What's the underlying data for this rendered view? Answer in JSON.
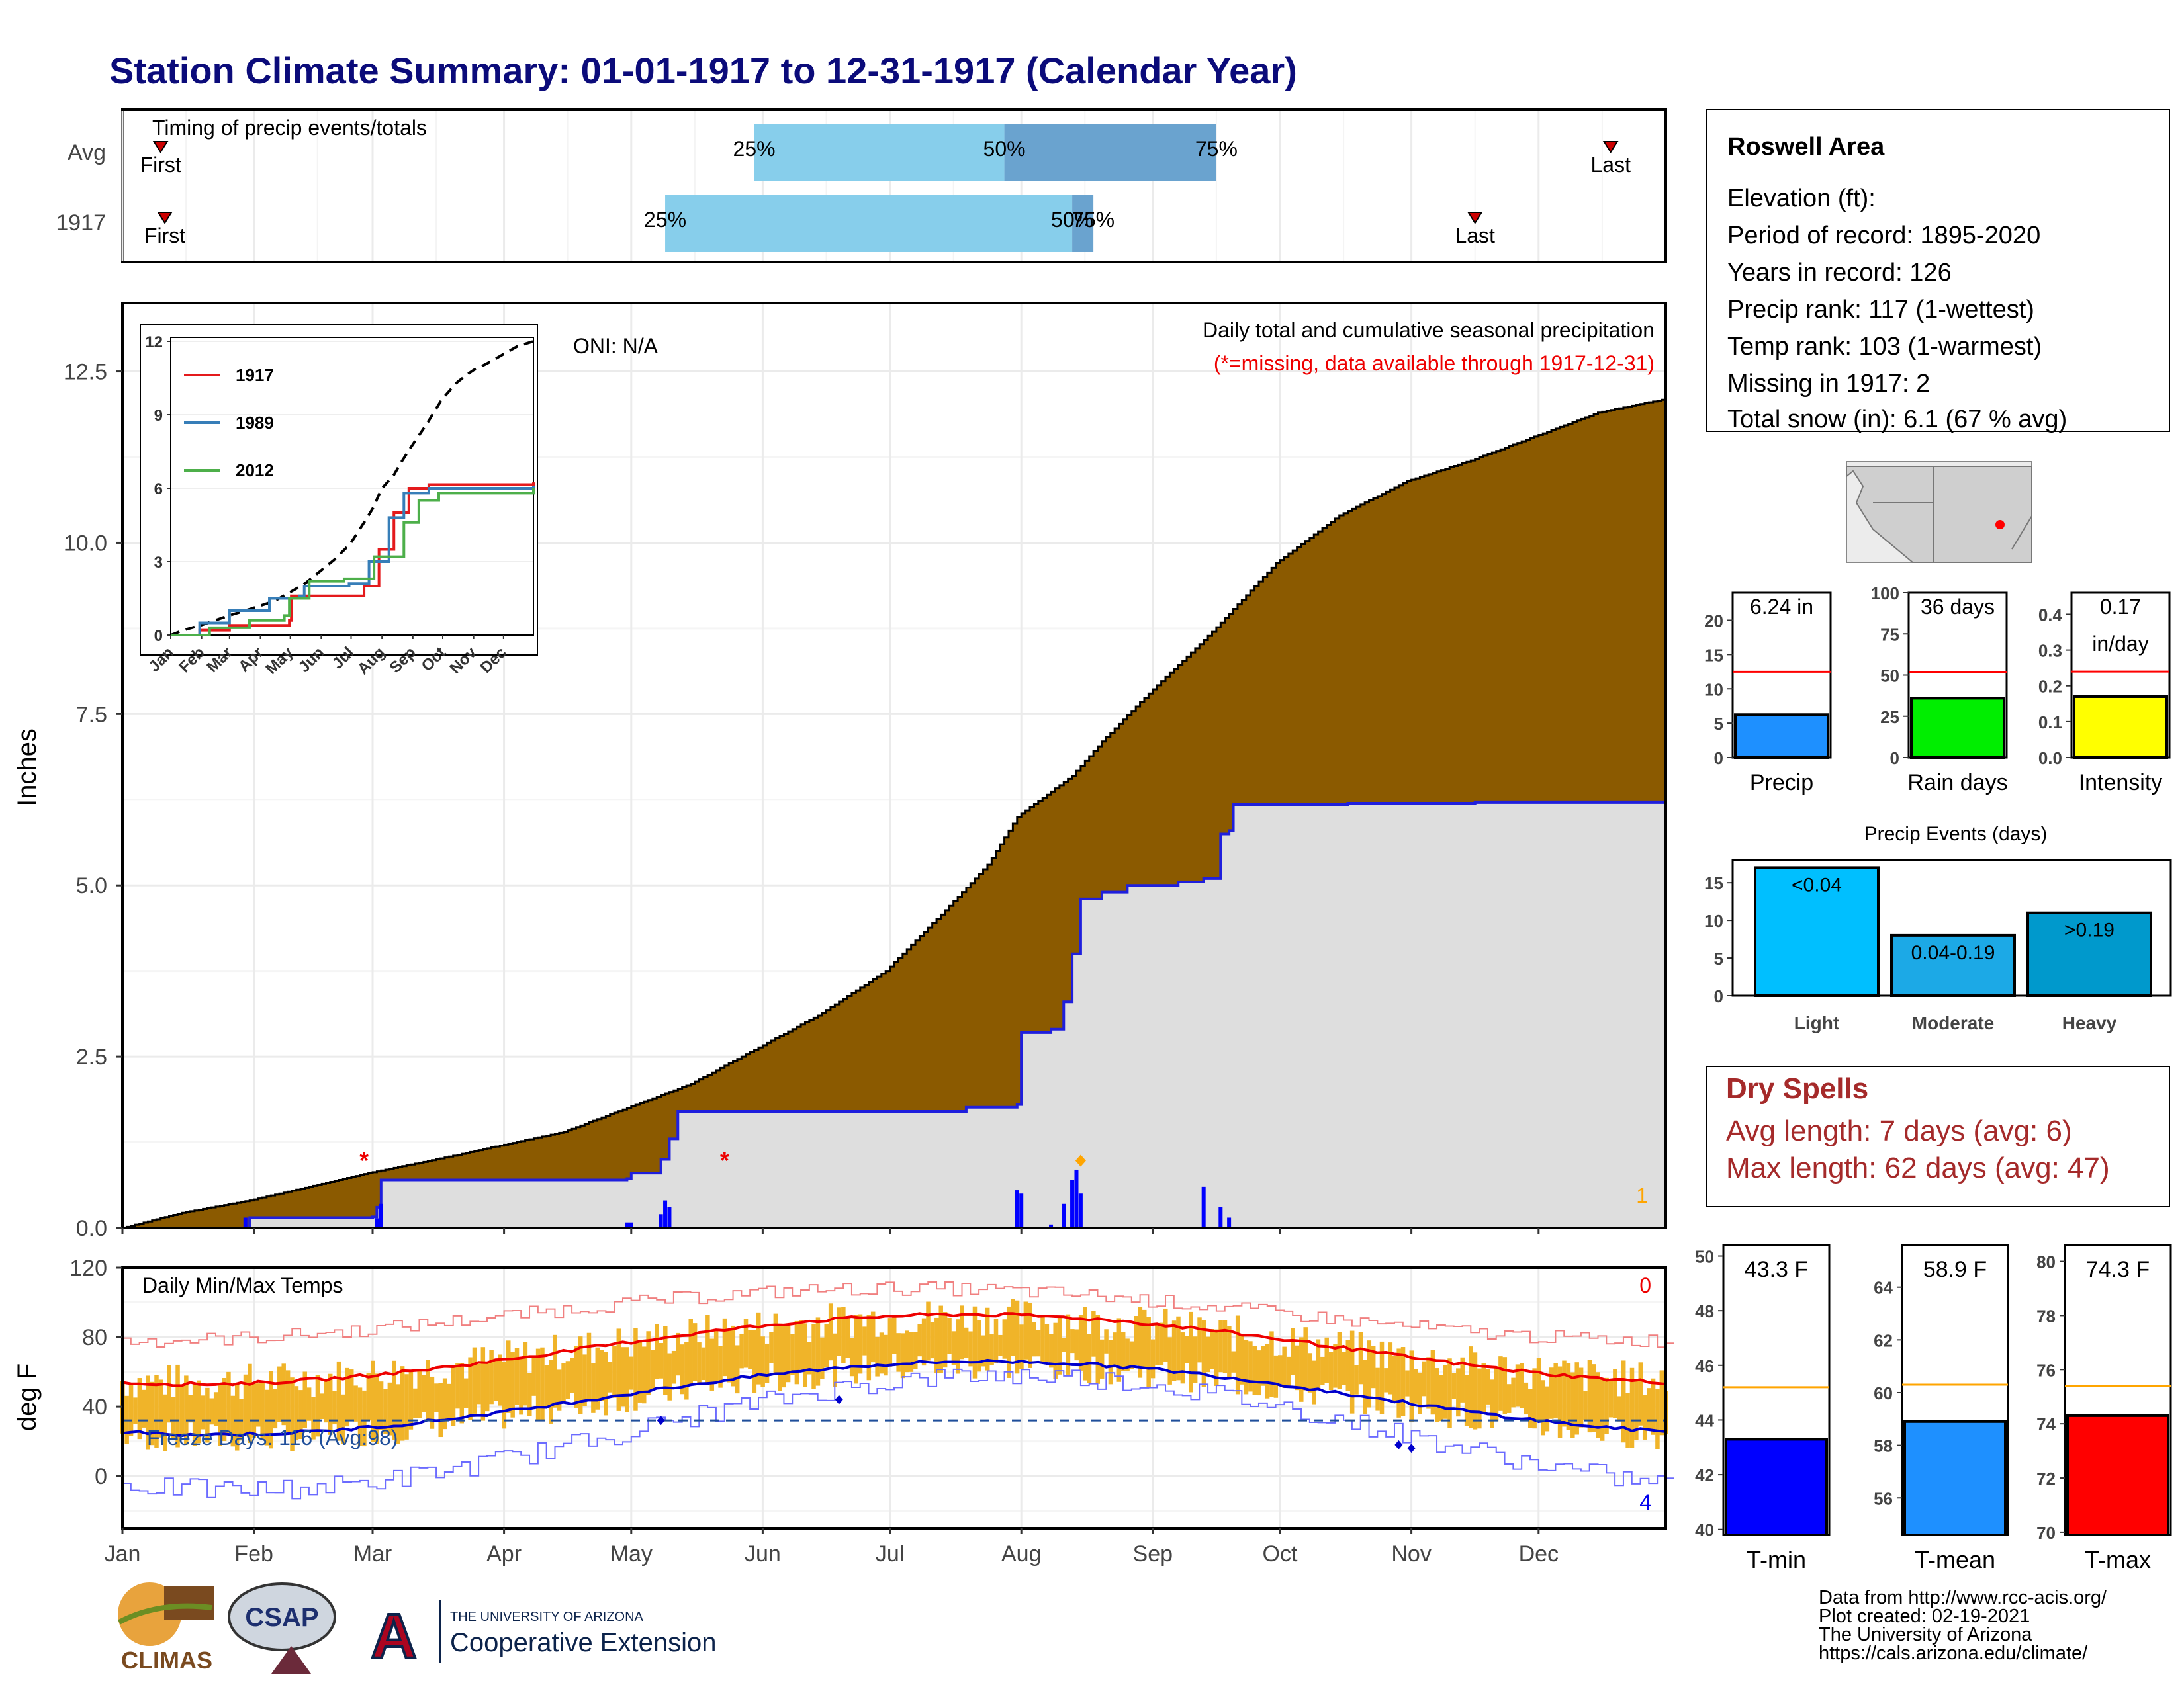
{
  "title": "Station Climate Summary: 01-01-1917 to 12-31-1917 (Calendar Year)",
  "timing": {
    "label": "Timing of precip events/totals",
    "rows": [
      {
        "name": "Avg",
        "first_doy": 10,
        "p25_doy": 150,
        "p50_doy": 209,
        "p75_doy": 259,
        "last_doy": 352
      },
      {
        "name": "1917",
        "first_doy": 11,
        "p25_doy": 129,
        "p50_doy": 225,
        "p75_doy": 230,
        "last_doy": 320
      }
    ],
    "labels": {
      "first": "First",
      "last": "Last",
      "p25": "25%",
      "p50": "50%",
      "p75": "75%"
    }
  },
  "chart_data": [
    {
      "type": "area",
      "name": "main-precip",
      "title": "Daily total and cumulative seasonal precipitation",
      "subtitle": "(*=missing, data available through 1917-12-31)",
      "oni": "ONI: N/A",
      "ylabel": "Inches",
      "ylim": [
        0,
        13.5
      ],
      "yticks": [
        "0.0",
        "2.5",
        "5.0",
        "7.5",
        "10.0",
        "12.5"
      ],
      "xticks": [
        "Jan",
        "Feb",
        "Mar",
        "Apr",
        "May",
        "Jun",
        "Jul",
        "Aug",
        "Sep",
        "Oct",
        "Nov",
        "Dec"
      ],
      "avg_cumulative": [
        [
          1,
          0
        ],
        [
          15,
          0.22
        ],
        [
          31,
          0.4
        ],
        [
          45,
          0.6
        ],
        [
          59,
          0.8
        ],
        [
          75,
          1.0
        ],
        [
          90,
          1.2
        ],
        [
          105,
          1.4
        ],
        [
          120,
          1.75
        ],
        [
          135,
          2.1
        ],
        [
          150,
          2.6
        ],
        [
          165,
          3.1
        ],
        [
          181,
          3.75
        ],
        [
          196,
          4.7
        ],
        [
          205,
          5.3
        ],
        [
          212,
          6.0
        ],
        [
          225,
          6.6
        ],
        [
          232,
          7.1
        ],
        [
          243,
          7.8
        ],
        [
          258,
          8.7
        ],
        [
          273,
          9.7
        ],
        [
          288,
          10.4
        ],
        [
          304,
          10.9
        ],
        [
          319,
          11.2
        ],
        [
          334,
          11.55
        ],
        [
          349,
          11.9
        ],
        [
          365,
          12.1
        ]
      ],
      "cumulative_1917": [
        [
          1,
          0
        ],
        [
          30,
          0
        ],
        [
          31,
          0.15
        ],
        [
          60,
          0.16
        ],
        [
          61,
          0.3
        ],
        [
          62,
          0.7
        ],
        [
          120,
          0.72
        ],
        [
          121,
          0.8
        ],
        [
          128,
          1.0
        ],
        [
          130,
          1.3
        ],
        [
          132,
          1.7
        ],
        [
          200,
          1.76
        ],
        [
          212,
          1.8
        ],
        [
          213,
          2.85
        ],
        [
          220,
          2.9
        ],
        [
          223,
          3.3
        ],
        [
          225,
          4.0
        ],
        [
          227,
          4.8
        ],
        [
          232,
          4.9
        ],
        [
          238,
          5.0
        ],
        [
          250,
          5.05
        ],
        [
          256,
          5.1
        ],
        [
          260,
          5.75
        ],
        [
          262,
          5.8
        ],
        [
          263,
          6.18
        ],
        [
          290,
          6.19
        ],
        [
          320,
          6.21
        ],
        [
          365,
          6.24
        ]
      ],
      "daily_bars": [
        [
          30,
          0.15
        ],
        [
          61,
          0.14
        ],
        [
          62,
          0.35
        ],
        [
          120,
          0.08
        ],
        [
          121,
          0.08
        ],
        [
          128,
          0.2
        ],
        [
          129,
          0.4
        ],
        [
          130,
          0.3
        ],
        [
          212,
          0.55
        ],
        [
          213,
          0.5
        ],
        [
          220,
          0.05
        ],
        [
          223,
          0.35
        ],
        [
          225,
          0.7
        ],
        [
          226,
          0.85
        ],
        [
          227,
          0.5
        ],
        [
          256,
          0.6
        ],
        [
          260,
          0.3
        ],
        [
          262,
          0.15
        ]
      ],
      "missing_markers": [
        [
          58,
          1.0
        ],
        [
          143,
          1.0
        ]
      ],
      "snow_marker_day": 227,
      "corner_count": "1",
      "inset": {
        "yticks": [
          "0",
          "3",
          "6",
          "9",
          "12"
        ],
        "xticks": [
          "Jan",
          "Feb",
          "Mar",
          "Apr",
          "May",
          "Jun",
          "Jul",
          "Aug",
          "Sep",
          "Oct",
          "Nov",
          "Dec"
        ],
        "series": [
          {
            "name": "1917",
            "color": "#e41a1c"
          },
          {
            "name": "1989",
            "color": "#377eb8"
          },
          {
            "name": "2012",
            "color": "#4daf4a"
          }
        ]
      }
    },
    {
      "type": "line",
      "name": "temps",
      "title": "Daily Min/Max Temps",
      "ylabel": "deg F",
      "ylim": [
        -30,
        120
      ],
      "yticks": [
        "0",
        "40",
        "80",
        "120"
      ],
      "freeze_label": "Freeze Days: 116 (Avg:98)",
      "freeze_line": 32,
      "top_count": "0",
      "bottom_count": "4",
      "xticks": [
        "Jan",
        "Feb",
        "Mar",
        "Apr",
        "May",
        "Jun",
        "Jul",
        "Aug",
        "Sep",
        "Oct",
        "Nov",
        "Dec"
      ]
    }
  ],
  "info": {
    "station": "Roswell Area",
    "lines": [
      "Elevation (ft):",
      "Period of record: 1895-2020",
      "Years in record: 126",
      "Precip rank: 117 (1-wettest)",
      "Temp rank: 103 (1-warmest)",
      "Missing in 1917: 2",
      "Total snow (in): 6.1 (67 % avg)"
    ]
  },
  "mini_bars": {
    "precip": {
      "label": "Precip",
      "value_text": "6.24 in",
      "value": 6.24,
      "avg": 12.5,
      "ymax": 24,
      "yticks": [
        "0",
        "5",
        "10",
        "15",
        "20"
      ],
      "color": "#1e90ff"
    },
    "rain_days": {
      "label": "Rain days",
      "value_text": "36 days",
      "value": 36,
      "avg": 52,
      "ymax": 100,
      "yticks": [
        "0",
        "25",
        "50",
        "75",
        "100"
      ],
      "color": "#00ee00"
    },
    "intensity": {
      "label": "Intensity",
      "value_text1": "0.17",
      "value_text2": "in/day",
      "value": 0.17,
      "avg": 0.24,
      "ymax": 0.46,
      "yticks": [
        "0.0",
        "0.1",
        "0.2",
        "0.3",
        "0.4"
      ],
      "color": "#ffff00"
    }
  },
  "events": {
    "title": "Precip Events (days)",
    "yticks": [
      "0",
      "5",
      "10",
      "15"
    ],
    "bars": [
      {
        "name": "Light",
        "label": "<0.04",
        "value": 17,
        "color": "#00bfff"
      },
      {
        "name": "Moderate",
        "label": "0.04-0.19",
        "value": 8,
        "color": "#1ca9e6"
      },
      {
        "name": "Heavy",
        "label": ">0.19",
        "value": 11,
        "color": "#0099cc"
      }
    ]
  },
  "dry_spells": {
    "title": "Dry Spells",
    "avg_line": "Avg length: 7 days (avg: 6)",
    "max_line": "Max length: 62 days (avg: 47)"
  },
  "temp_bars": {
    "tmin": {
      "label": "T-min",
      "value_text": "43.3 F",
      "value": 43.3,
      "avg": 45.2,
      "ylim": [
        39.8,
        50.4
      ],
      "yticks": [
        "40",
        "42",
        "44",
        "46",
        "48",
        "50"
      ],
      "color": "#0000ff"
    },
    "tmean": {
      "label": "T-mean",
      "value_text": "58.9 F",
      "value": 58.9,
      "avg": 60.3,
      "ylim": [
        54.6,
        65.6
      ],
      "yticks": [
        "56",
        "58",
        "60",
        "62",
        "64"
      ],
      "color": "#1e90ff"
    },
    "tmax": {
      "label": "T-max",
      "value_text": "74.3 F",
      "value": 74.3,
      "avg": 75.4,
      "ylim": [
        69.9,
        80.6
      ],
      "yticks": [
        "70",
        "72",
        "74",
        "76",
        "78",
        "80"
      ],
      "color": "#ff0000"
    }
  },
  "footer": {
    "lines": [
      "Data from http://www.rcc-acis.org/",
      "Plot created: 02-19-2021",
      "The University of Arizona",
      "https://cals.arizona.edu/climate/"
    ],
    "logo_climas": "CLIMAS",
    "logo_csap": "CSAP",
    "ua_line1": "THE UNIVERSITY OF ARIZONA",
    "ua_line2": "Cooperative Extension",
    "ua_letter": "A"
  }
}
